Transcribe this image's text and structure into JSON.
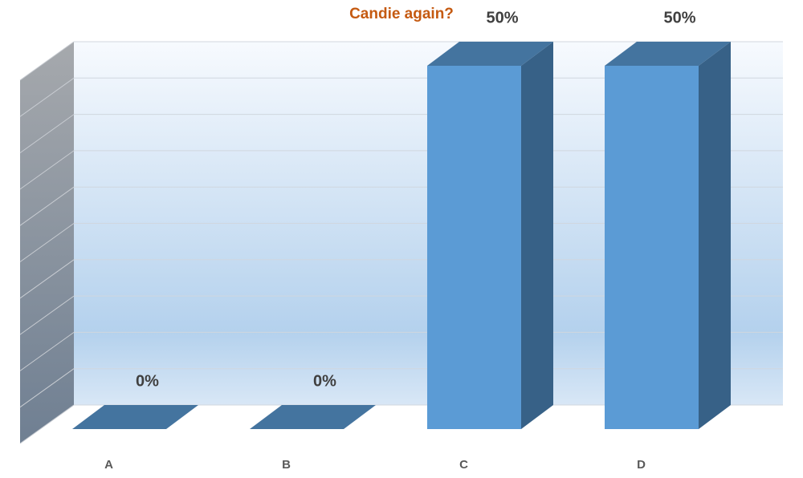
{
  "chart_data": {
    "type": "bar3d",
    "title": "Candie again?",
    "categories": [
      "A",
      "B",
      "C",
      "D"
    ],
    "values": [
      0,
      0,
      50,
      50
    ],
    "value_labels": [
      "0%",
      "0%",
      "50%",
      "50%"
    ],
    "color": "#5b9bd5",
    "ylim": [
      0,
      50
    ],
    "yticks": [
      0,
      5,
      10,
      15,
      20,
      25,
      30,
      35,
      40,
      45,
      50
    ],
    "grid": true
  }
}
